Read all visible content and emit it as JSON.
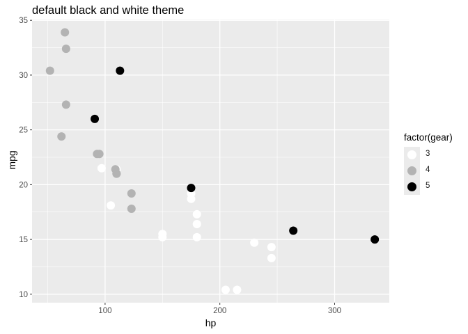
{
  "chart_data": {
    "type": "scatter",
    "title": "default black and white theme",
    "xlabel": "hp",
    "ylabel": "mpg",
    "xlim": [
      36.35,
      347.65
    ],
    "ylim": [
      9.225,
      35.075
    ],
    "x_ticks": [
      100,
      200,
      300
    ],
    "y_ticks": [
      10,
      15,
      20,
      25,
      30,
      35
    ],
    "grid": true,
    "legend": {
      "title": "factor(gear)",
      "placement": "right",
      "entries": [
        {
          "label": "3",
          "color": "#ffffff"
        },
        {
          "label": "4",
          "color": "#b3b3b3"
        },
        {
          "label": "5",
          "color": "#000000"
        }
      ]
    },
    "series": [
      {
        "name": "3",
        "color": "#ffffff",
        "x": [
          110,
          175,
          105,
          245,
          180,
          180,
          180,
          205,
          215,
          230,
          97,
          150,
          150,
          245,
          175
        ],
        "y": [
          21.4,
          18.7,
          18.1,
          14.3,
          16.4,
          17.3,
          15.2,
          10.4,
          10.4,
          14.7,
          21.5,
          15.5,
          15.2,
          13.3,
          19.2
        ]
      },
      {
        "name": "4",
        "color": "#b3b3b3",
        "x": [
          110,
          110,
          93,
          62,
          95,
          123,
          123,
          66,
          52,
          65,
          66,
          109
        ],
        "y": [
          21.0,
          21.0,
          22.8,
          24.4,
          22.8,
          19.2,
          17.8,
          32.4,
          30.4,
          33.9,
          27.3,
          21.4
        ]
      },
      {
        "name": "5",
        "color": "#000000",
        "x": [
          91,
          113,
          264,
          175,
          335
        ],
        "y": [
          26.0,
          30.4,
          15.8,
          19.7,
          15.0
        ]
      }
    ]
  },
  "style": {
    "panel_background": "#ebebeb",
    "grid_color": "#ffffff",
    "tick_label_color": "#4d4d4d"
  }
}
